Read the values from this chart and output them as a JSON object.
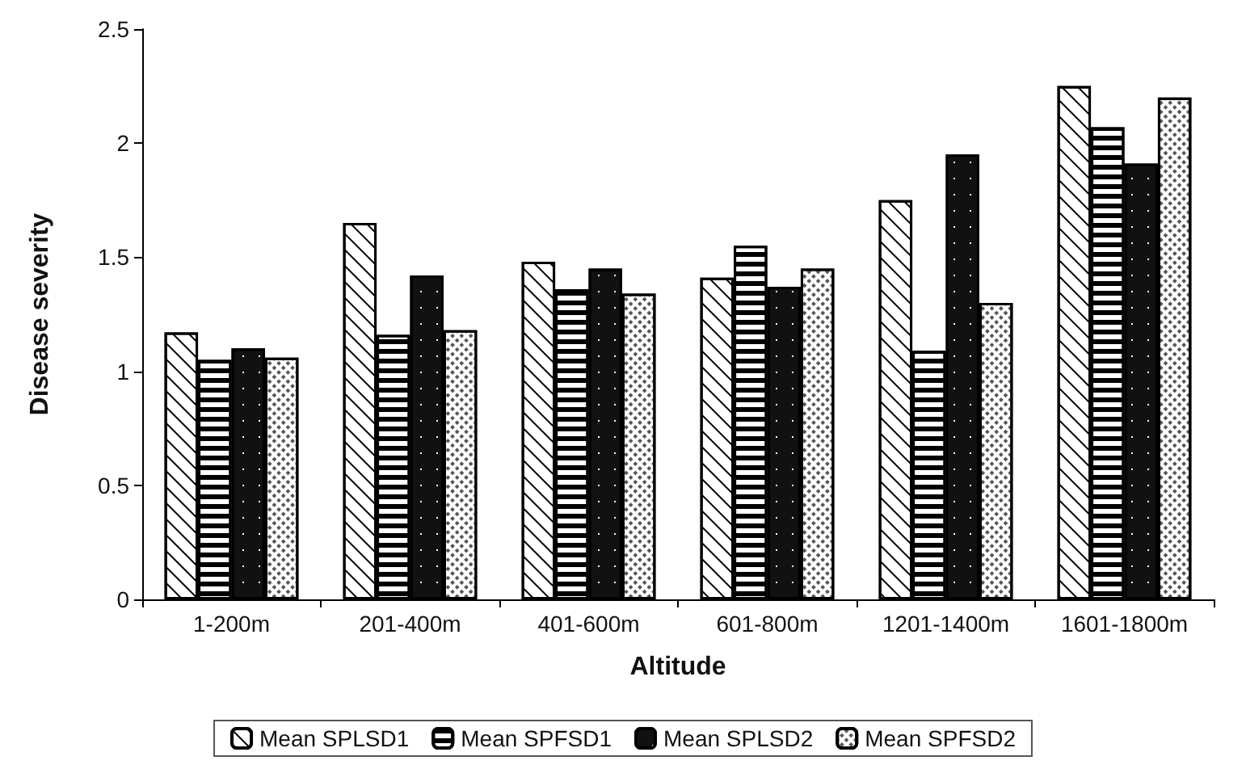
{
  "chart_data": {
    "type": "bar",
    "xlabel": "Altitude",
    "ylabel": "Disease severity",
    "categories": [
      "1-200m",
      "201-400m",
      "401-600m",
      "601-800m",
      "1201-1400m",
      "1601-1800m"
    ],
    "series": [
      {
        "name": "Mean SPLSD1",
        "color": "#ffffff",
        "values": [
          1.17,
          1.65,
          1.48,
          1.41,
          1.75,
          2.25
        ]
      },
      {
        "name": "Mean SPFSD1",
        "color": "#ffffff",
        "values": [
          1.05,
          1.16,
          1.36,
          1.55,
          1.09,
          2.07
        ]
      },
      {
        "name": "Mean SPLSD2",
        "color": "#111111",
        "values": [
          1.1,
          1.42,
          1.45,
          1.37,
          1.95,
          1.91
        ]
      },
      {
        "name": "Mean SPFSD2",
        "color": "#ffffff",
        "values": [
          1.06,
          1.18,
          1.34,
          1.45,
          1.3,
          2.2
        ]
      }
    ],
    "ylim": [
      0,
      2.5
    ],
    "yticks": [
      0,
      0.5,
      1,
      1.5,
      2,
      2.5
    ],
    "grid": false,
    "legend": "bottom"
  }
}
